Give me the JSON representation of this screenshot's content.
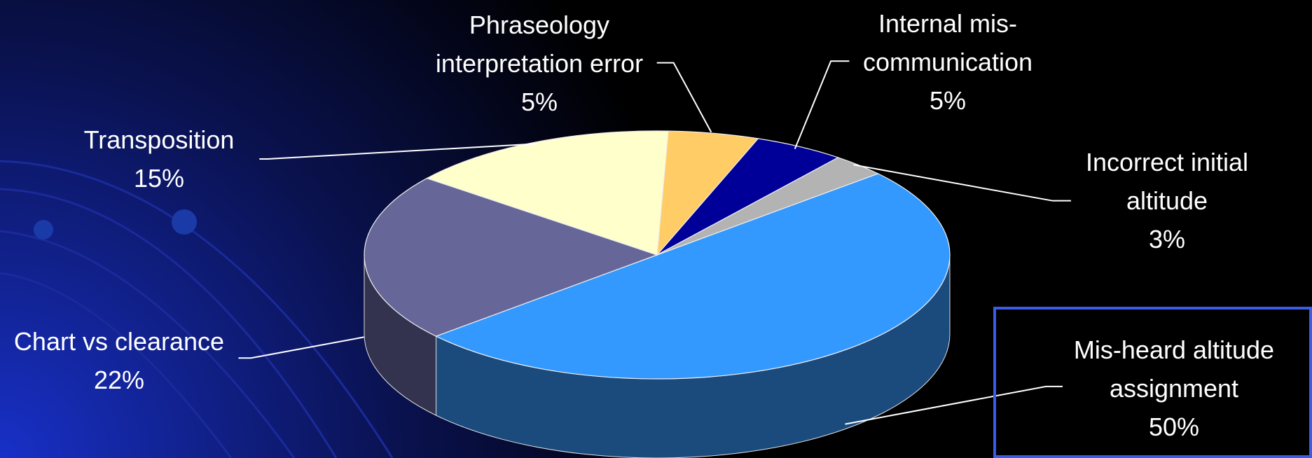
{
  "chart_data": {
    "type": "pie3d",
    "categories": [
      "Mis-heard altitude assignment",
      "Chart vs clearance",
      "Transposition",
      "Phraseology interpretation error",
      "Internal mis-communication",
      "Incorrect initial altitude"
    ],
    "values": [
      50,
      22,
      15,
      5,
      5,
      3
    ],
    "value_labels": [
      "50%",
      "22%",
      "15%",
      "5%",
      "5%",
      "3%"
    ],
    "colors": [
      "#3399ff",
      "#666699",
      "#ffffcc",
      "#ffcc66",
      "#000099",
      "#b3b3b3"
    ],
    "side_colors": [
      "#1b4a7c",
      "#33334f",
      "#b3b38f",
      "#b38f47",
      "#00006b",
      "#7d7d7d"
    ]
  }
}
